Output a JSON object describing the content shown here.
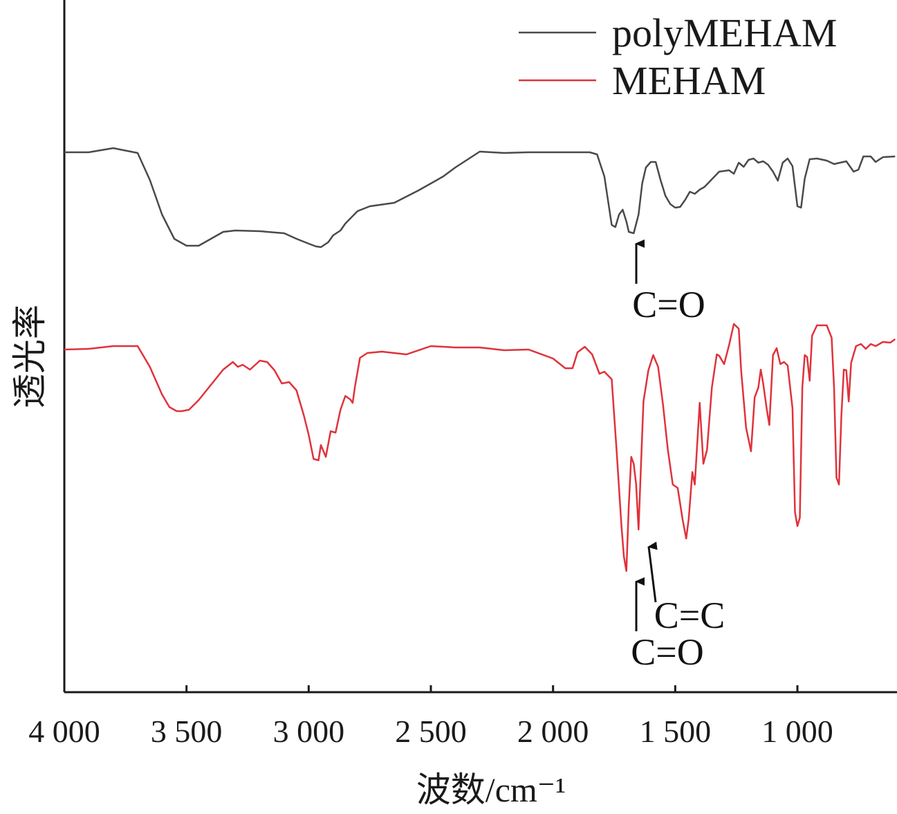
{
  "chart_data": {
    "type": "line",
    "title": "",
    "xlabel": "波数/cm⁻¹",
    "ylabel": "透光率",
    "xlim": [
      4000,
      600
    ],
    "x_reversed": true,
    "y_ticks_shown": false,
    "grid": false,
    "legend_position": "top-right",
    "x_ticks": [
      4000,
      3500,
      3000,
      2500,
      2000,
      1500,
      1000
    ],
    "x_tick_labels": [
      "4 000",
      "3 500",
      "3 000",
      "2 500",
      "2 000",
      "1 500",
      "1 000"
    ],
    "series": [
      {
        "name": "polyMEHAM",
        "color": "#4a4a4a",
        "points": [
          [
            4000,
            0.78
          ],
          [
            3900,
            0.78
          ],
          [
            3800,
            0.786
          ],
          [
            3700,
            0.779
          ],
          [
            3650,
            0.74
          ],
          [
            3600,
            0.69
          ],
          [
            3550,
            0.655
          ],
          [
            3500,
            0.645
          ],
          [
            3450,
            0.645
          ],
          [
            3400,
            0.655
          ],
          [
            3350,
            0.665
          ],
          [
            3300,
            0.667
          ],
          [
            3200,
            0.666
          ],
          [
            3100,
            0.663
          ],
          [
            3050,
            0.655
          ],
          [
            3000,
            0.648
          ],
          [
            2970,
            0.644
          ],
          [
            2950,
            0.643
          ],
          [
            2920,
            0.65
          ],
          [
            2900,
            0.66
          ],
          [
            2870,
            0.667
          ],
          [
            2850,
            0.677
          ],
          [
            2800,
            0.695
          ],
          [
            2750,
            0.702
          ],
          [
            2650,
            0.707
          ],
          [
            2550,
            0.725
          ],
          [
            2450,
            0.745
          ],
          [
            2400,
            0.758
          ],
          [
            2300,
            0.781
          ],
          [
            2200,
            0.779
          ],
          [
            2100,
            0.78
          ],
          [
            2000,
            0.78
          ],
          [
            1900,
            0.78
          ],
          [
            1850,
            0.78
          ],
          [
            1820,
            0.777
          ],
          [
            1790,
            0.745
          ],
          [
            1760,
            0.675
          ],
          [
            1745,
            0.672
          ],
          [
            1730,
            0.69
          ],
          [
            1715,
            0.697
          ],
          [
            1700,
            0.68
          ],
          [
            1690,
            0.665
          ],
          [
            1670,
            0.663
          ],
          [
            1650,
            0.69
          ],
          [
            1635,
            0.735
          ],
          [
            1620,
            0.758
          ],
          [
            1600,
            0.766
          ],
          [
            1580,
            0.766
          ],
          [
            1560,
            0.74
          ],
          [
            1540,
            0.717
          ],
          [
            1520,
            0.705
          ],
          [
            1500,
            0.7
          ],
          [
            1480,
            0.701
          ],
          [
            1460,
            0.711
          ],
          [
            1440,
            0.723
          ],
          [
            1420,
            0.72
          ],
          [
            1400,
            0.726
          ],
          [
            1380,
            0.73
          ],
          [
            1350,
            0.741
          ],
          [
            1320,
            0.752
          ],
          [
            1280,
            0.754
          ],
          [
            1260,
            0.749
          ],
          [
            1240,
            0.765
          ],
          [
            1220,
            0.759
          ],
          [
            1200,
            0.769
          ],
          [
            1180,
            0.771
          ],
          [
            1160,
            0.765
          ],
          [
            1140,
            0.767
          ],
          [
            1120,
            0.762
          ],
          [
            1100,
            0.752
          ],
          [
            1080,
            0.739
          ],
          [
            1060,
            0.765
          ],
          [
            1040,
            0.771
          ],
          [
            1020,
            0.76
          ],
          [
            1000,
            0.702
          ],
          [
            985,
            0.7
          ],
          [
            970,
            0.742
          ],
          [
            950,
            0.77
          ],
          [
            920,
            0.771
          ],
          [
            880,
            0.768
          ],
          [
            850,
            0.763
          ],
          [
            800,
            0.767
          ],
          [
            770,
            0.752
          ],
          [
            750,
            0.755
          ],
          [
            730,
            0.774
          ],
          [
            700,
            0.774
          ],
          [
            680,
            0.766
          ],
          [
            650,
            0.773
          ],
          [
            600,
            0.774
          ]
        ]
      },
      {
        "name": "MEHAM",
        "color": "#e0323a",
        "points": [
          [
            4000,
            0.495
          ],
          [
            3900,
            0.496
          ],
          [
            3800,
            0.5
          ],
          [
            3700,
            0.5
          ],
          [
            3650,
            0.47
          ],
          [
            3600,
            0.43
          ],
          [
            3570,
            0.412
          ],
          [
            3540,
            0.406
          ],
          [
            3520,
            0.406
          ],
          [
            3490,
            0.408
          ],
          [
            3450,
            0.422
          ],
          [
            3400,
            0.444
          ],
          [
            3350,
            0.466
          ],
          [
            3310,
            0.477
          ],
          [
            3290,
            0.47
          ],
          [
            3270,
            0.473
          ],
          [
            3240,
            0.466
          ],
          [
            3200,
            0.479
          ],
          [
            3170,
            0.477
          ],
          [
            3140,
            0.465
          ],
          [
            3110,
            0.446
          ],
          [
            3080,
            0.448
          ],
          [
            3050,
            0.436
          ],
          [
            3020,
            0.4
          ],
          [
            3000,
            0.372
          ],
          [
            2980,
            0.337
          ],
          [
            2960,
            0.335
          ],
          [
            2950,
            0.357
          ],
          [
            2930,
            0.34
          ],
          [
            2910,
            0.377
          ],
          [
            2890,
            0.375
          ],
          [
            2870,
            0.408
          ],
          [
            2850,
            0.428
          ],
          [
            2830,
            0.423
          ],
          [
            2820,
            0.418
          ],
          [
            2810,
            0.443
          ],
          [
            2790,
            0.483
          ],
          [
            2760,
            0.49
          ],
          [
            2700,
            0.492
          ],
          [
            2600,
            0.488
          ],
          [
            2500,
            0.5
          ],
          [
            2400,
            0.498
          ],
          [
            2300,
            0.498
          ],
          [
            2200,
            0.494
          ],
          [
            2100,
            0.495
          ],
          [
            2000,
            0.482
          ],
          [
            1950,
            0.468
          ],
          [
            1920,
            0.468
          ],
          [
            1900,
            0.491
          ],
          [
            1870,
            0.499
          ],
          [
            1840,
            0.488
          ],
          [
            1810,
            0.46
          ],
          [
            1790,
            0.463
          ],
          [
            1760,
            0.452
          ],
          [
            1740,
            0.35
          ],
          [
            1720,
            0.24
          ],
          [
            1710,
            0.196
          ],
          [
            1700,
            0.175
          ],
          [
            1690,
            0.27
          ],
          [
            1680,
            0.34
          ],
          [
            1670,
            0.33
          ],
          [
            1660,
            0.3
          ],
          [
            1650,
            0.235
          ],
          [
            1640,
            0.33
          ],
          [
            1630,
            0.42
          ],
          [
            1610,
            0.465
          ],
          [
            1590,
            0.487
          ],
          [
            1570,
            0.47
          ],
          [
            1550,
            0.415
          ],
          [
            1530,
            0.35
          ],
          [
            1510,
            0.3
          ],
          [
            1490,
            0.295
          ],
          [
            1470,
            0.25
          ],
          [
            1455,
            0.222
          ],
          [
            1445,
            0.25
          ],
          [
            1430,
            0.318
          ],
          [
            1420,
            0.3
          ],
          [
            1400,
            0.418
          ],
          [
            1385,
            0.33
          ],
          [
            1370,
            0.35
          ],
          [
            1350,
            0.44
          ],
          [
            1330,
            0.488
          ],
          [
            1320,
            0.486
          ],
          [
            1300,
            0.474
          ],
          [
            1280,
            0.501
          ],
          [
            1260,
            0.532
          ],
          [
            1240,
            0.525
          ],
          [
            1230,
            0.464
          ],
          [
            1210,
            0.382
          ],
          [
            1190,
            0.348
          ],
          [
            1175,
            0.426
          ],
          [
            1160,
            0.44
          ],
          [
            1150,
            0.466
          ],
          [
            1140,
            0.446
          ],
          [
            1125,
            0.408
          ],
          [
            1115,
            0.386
          ],
          [
            1100,
            0.487
          ],
          [
            1085,
            0.497
          ],
          [
            1070,
            0.474
          ],
          [
            1055,
            0.477
          ],
          [
            1040,
            0.472
          ],
          [
            1020,
            0.41
          ],
          [
            1010,
            0.26
          ],
          [
            1000,
            0.24
          ],
          [
            990,
            0.252
          ],
          [
            980,
            0.44
          ],
          [
            970,
            0.487
          ],
          [
            960,
            0.484
          ],
          [
            950,
            0.45
          ],
          [
            940,
            0.515
          ],
          [
            920,
            0.53
          ],
          [
            900,
            0.53
          ],
          [
            880,
            0.53
          ],
          [
            860,
            0.512
          ],
          [
            850,
            0.44
          ],
          [
            840,
            0.31
          ],
          [
            830,
            0.3
          ],
          [
            820,
            0.4
          ],
          [
            810,
            0.466
          ],
          [
            800,
            0.465
          ],
          [
            790,
            0.42
          ],
          [
            780,
            0.476
          ],
          [
            760,
            0.5
          ],
          [
            740,
            0.503
          ],
          [
            720,
            0.496
          ],
          [
            700,
            0.503
          ],
          [
            680,
            0.5
          ],
          [
            650,
            0.506
          ],
          [
            620,
            0.505
          ],
          [
            600,
            0.51
          ]
        ]
      }
    ],
    "annotations": [
      {
        "text": "C=O",
        "series": "polyMEHAM",
        "x": 1665
      },
      {
        "text": "C=O",
        "series": "MEHAM",
        "x": 1700
      },
      {
        "text": "C=C",
        "series": "MEHAM",
        "x": 1650
      }
    ]
  }
}
